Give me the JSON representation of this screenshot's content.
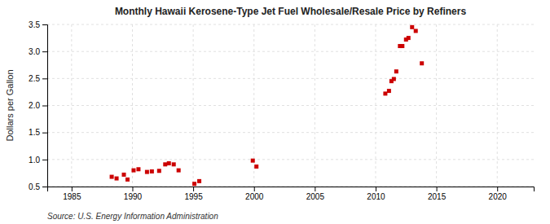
{
  "chart_data": {
    "type": "scatter",
    "title": "Monthly Hawaii Kerosene-Type Jet Fuel Wholesale/Resale Price by Refiners",
    "y_label": "Dollars per Gallon",
    "source": "Source: U.S. Energy Information Administration",
    "color": "#cc0000",
    "marker": "square",
    "grid": true,
    "xlim": [
      1983,
      2023
    ],
    "ylim": [
      0.5,
      3.5
    ],
    "xticks": [
      1985,
      1990,
      1995,
      2000,
      2005,
      2010,
      2015,
      2020
    ],
    "yticks": [
      0.5,
      {
        "value": 1.0,
        "label": "1.0"
      },
      1.5,
      {
        "value": 2.0,
        "label": "2.0"
      },
      2.5,
      {
        "value": 3.0,
        "label": "3.0"
      },
      3.5
    ],
    "x": [
      1988.3,
      1988.7,
      1989.3,
      1989.6,
      1990.1,
      1990.5,
      1991.2,
      1991.6,
      1992.2,
      1992.7,
      1993.0,
      1993.4,
      1993.8,
      1995.1,
      1995.5,
      1999.9,
      2000.2,
      2010.8,
      2011.1,
      2011.3,
      2011.5,
      2011.7,
      2012.0,
      2012.2,
      2012.5,
      2012.7,
      2013.0,
      2013.3,
      2013.8
    ],
    "values": [
      0.68,
      0.65,
      0.72,
      0.63,
      0.8,
      0.82,
      0.77,
      0.78,
      0.79,
      0.91,
      0.93,
      0.91,
      0.8,
      0.55,
      0.6,
      0.98,
      0.87,
      2.22,
      2.27,
      2.45,
      2.49,
      2.63,
      3.1,
      3.1,
      3.22,
      3.25,
      3.45,
      3.38,
      2.78
    ]
  }
}
